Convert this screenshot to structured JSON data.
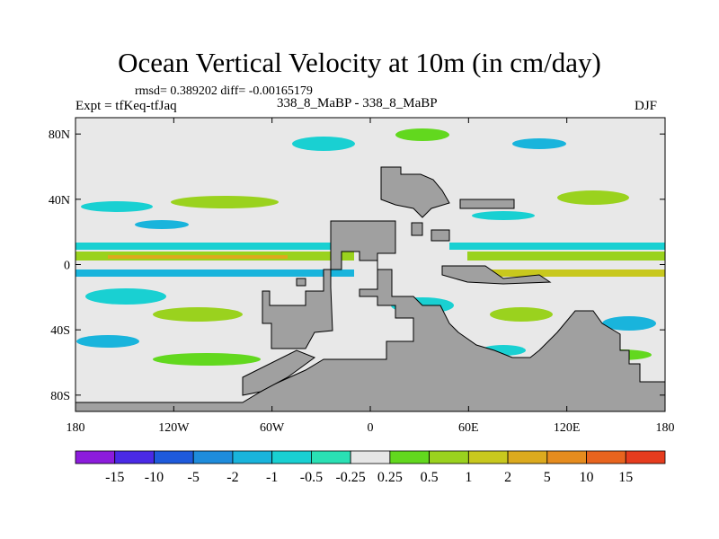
{
  "figure": {
    "title": "Ocean Vertical Velocity at 10m (in cm/day)",
    "stats": "rmsd= 0.389202 diff= -0.00165179",
    "left_label": "Expt = tfKeq-tfJaq",
    "center_label": "338_8_MaBP - 338_8_MaBP",
    "right_label": "DJF"
  },
  "map": {
    "x_ticks": [
      {
        "value": -180,
        "label": "180"
      },
      {
        "value": -120,
        "label": "120W"
      },
      {
        "value": -60,
        "label": "60W"
      },
      {
        "value": 0,
        "label": "0"
      },
      {
        "value": 60,
        "label": "60E"
      },
      {
        "value": 120,
        "label": "120E"
      },
      {
        "value": 180,
        "label": "180"
      }
    ],
    "y_ticks": [
      {
        "value": 80,
        "label": "80N"
      },
      {
        "value": 40,
        "label": "40N"
      },
      {
        "value": 0,
        "label": "0"
      },
      {
        "value": -40,
        "label": "40S"
      },
      {
        "value": -80,
        "label": "80S"
      }
    ],
    "lon_range": [
      -180,
      180
    ],
    "lat_range": [
      -90,
      90
    ],
    "land_color": "#a0a0a0",
    "ocean_bg": "#e8e8e8"
  },
  "colorbar": {
    "colors": [
      "#8c1cdc",
      "#4a2ae6",
      "#1e5adc",
      "#1e8cdc",
      "#19b4dc",
      "#19d0d2",
      "#2ae0b4",
      "#e6e6e6",
      "#62d81e",
      "#9ad21e",
      "#c8c81e",
      "#dcaa1e",
      "#e68c1e",
      "#e8641e",
      "#e63c1e"
    ],
    "labels": [
      "-15",
      "-10",
      "-5",
      "-2",
      "-1",
      "-0.5",
      "-0.25",
      "0.25",
      "0.5",
      "1",
      "2",
      "5",
      "10",
      "15"
    ]
  }
}
